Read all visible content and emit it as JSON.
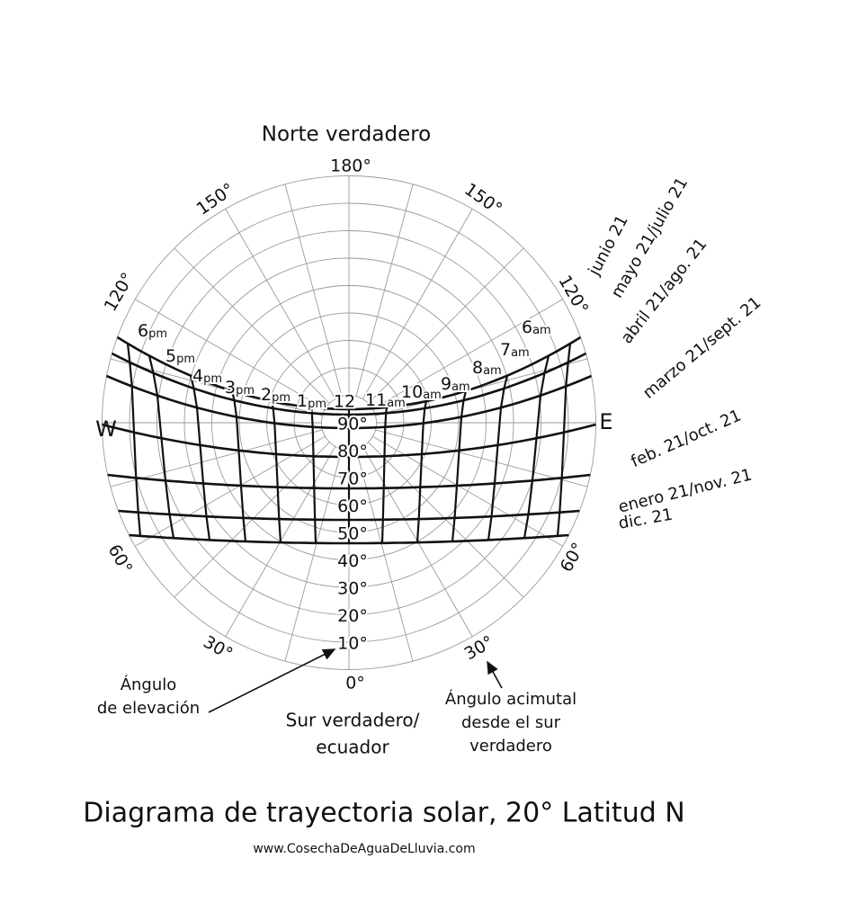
{
  "header": {
    "north": "Norte verdadero"
  },
  "compass": {
    "west": "W",
    "east": "E"
  },
  "azimuth_labels": [
    "180°",
    "150°",
    "150°",
    "120°",
    "120°",
    "60°",
    "60°",
    "30°",
    "30°",
    "0°"
  ],
  "elevation_labels": [
    "90°",
    "80°",
    "70°",
    "60°",
    "50°",
    "40°",
    "30°",
    "20°",
    "10°"
  ],
  "noon": "12",
  "hours_pm": [
    {
      "hour": "1",
      "suffix": "pm"
    },
    {
      "hour": "2",
      "suffix": "pm"
    },
    {
      "hour": "3",
      "suffix": "pm"
    },
    {
      "hour": "4",
      "suffix": "pm"
    },
    {
      "hour": "5",
      "suffix": "pm"
    },
    {
      "hour": "6",
      "suffix": "pm"
    }
  ],
  "hours_am": [
    {
      "hour": "11",
      "suffix": "am"
    },
    {
      "hour": "10",
      "suffix": "am"
    },
    {
      "hour": "9",
      "suffix": "am"
    },
    {
      "hour": "8",
      "suffix": "am"
    },
    {
      "hour": "7",
      "suffix": "am"
    },
    {
      "hour": "6",
      "suffix": "am"
    }
  ],
  "dates": [
    "junio 21",
    "mayo 21/julio 21",
    "abril 21/ago. 21",
    "marzo 21/sept. 21",
    "feb. 21/oct. 21",
    "enero 21/nov. 21",
    "dic. 21"
  ],
  "annotations": {
    "elevation": [
      "Ángulo",
      "de elevación"
    ],
    "south": [
      "Sur verdadero/",
      "ecuador"
    ],
    "azimuth": [
      "Ángulo acimutal",
      "desde el sur",
      "verdadero"
    ]
  },
  "footer": {
    "title": "Diagrama de trayectoria solar, 20° Latitud N",
    "url": "www.CosechaDeAguaDeLluvia.com"
  }
}
